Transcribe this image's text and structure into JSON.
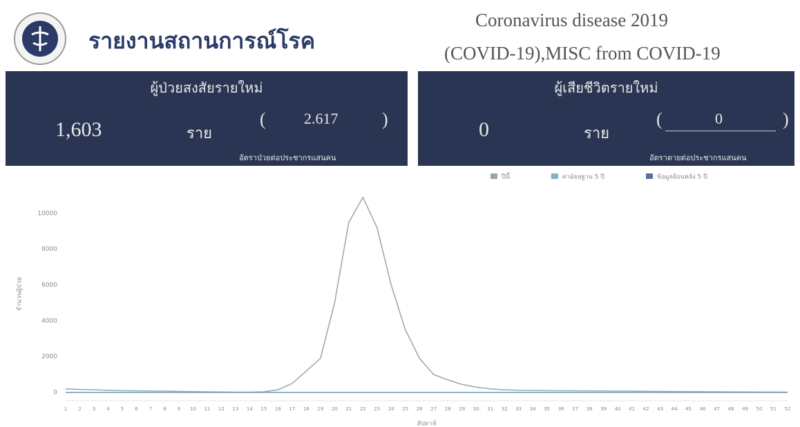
{
  "header": {
    "title": "รายงานสถานการณ์โรค",
    "subtitle_1": "Coronavirus disease 2019",
    "subtitle_2": "(COVID-19),MISC from COVID-19"
  },
  "cards": [
    {
      "title": "ผู้ป่วยสงสัยรายใหม่",
      "count": "1,603",
      "unit": "ราย",
      "rate": "2.617",
      "rate_label": "อัตราป่วยต่อประชากรแสนคน"
    },
    {
      "title": "ผู้เสียชีวิตรายใหม่",
      "count": "0",
      "unit": "ราย",
      "rate": "0",
      "rate_label": "อัตราตายต่อประชากรแสนคน"
    }
  ],
  "chart_data": {
    "type": "line",
    "x_label": "สัปดาห์",
    "y_label": "จำนวนผู้ป่วย",
    "categories": [
      "1",
      "2",
      "3",
      "4",
      "5",
      "6",
      "7",
      "8",
      "9",
      "10",
      "11",
      "12",
      "13",
      "14",
      "15",
      "16",
      "17",
      "18",
      "19",
      "20",
      "21",
      "22",
      "23",
      "24",
      "25",
      "26",
      "27",
      "28",
      "29",
      "30",
      "31",
      "32",
      "33",
      "34",
      "35",
      "36",
      "37",
      "38",
      "39",
      "40",
      "41",
      "42",
      "43",
      "44",
      "45",
      "46",
      "47",
      "48",
      "49",
      "50",
      "51",
      "52"
    ],
    "series": [
      {
        "name": "ปีนี้",
        "color": "#9aa3ad",
        "values": [
          200,
          170,
          150,
          120,
          100,
          90,
          80,
          70,
          60,
          50,
          40,
          30,
          20,
          20,
          40,
          150,
          500,
          1200,
          1900,
          5000,
          9500,
          10900,
          9200,
          6000,
          3500,
          1900,
          1000,
          700,
          450,
          300,
          200,
          150,
          120,
          110,
          100,
          95,
          90,
          85,
          80,
          75,
          70,
          65,
          60,
          55,
          50,
          45,
          40,
          35,
          30,
          25,
          22,
          20
        ]
      },
      {
        "name": "ค่ามัธยฐาน 5 ปี",
        "color": "#7fb2c9",
        "values": [
          0,
          0,
          0,
          0,
          0,
          0,
          0,
          0,
          0,
          0,
          0,
          0,
          0,
          0,
          0,
          0,
          0,
          0,
          0,
          0,
          0,
          0,
          0,
          0,
          0,
          0,
          0,
          0,
          0,
          0,
          0,
          0,
          0,
          0,
          0,
          0,
          0,
          0,
          0,
          0,
          0,
          0,
          0,
          0,
          0,
          0,
          0,
          0,
          0,
          0,
          0,
          0
        ]
      },
      {
        "name": "ข้อมูลย้อนหลัง 5 ปี",
        "color": "#5a6f9a",
        "values": [
          0,
          0,
          0,
          0,
          0,
          0,
          0,
          0,
          0,
          0,
          0,
          0,
          0,
          0,
          0,
          0,
          0,
          0,
          0,
          0,
          0,
          0,
          0,
          0,
          0,
          0,
          0,
          0,
          0,
          0,
          0,
          0,
          0,
          0,
          0,
          0,
          0,
          0,
          0,
          0,
          0,
          0,
          0,
          0,
          0,
          0,
          0,
          0,
          0,
          0,
          0,
          0
        ]
      }
    ],
    "ylim": [
      0,
      11000
    ],
    "yticks": [
      0,
      2000,
      4000,
      6000,
      8000,
      10000
    ],
    "grid": false,
    "legend": "top-right"
  }
}
